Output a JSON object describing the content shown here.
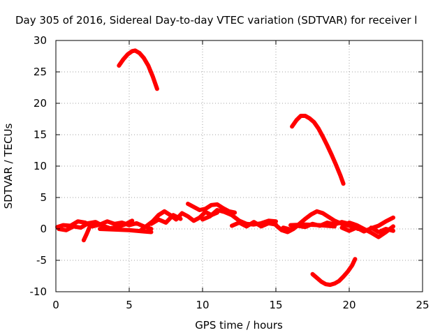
{
  "chart_data": {
    "type": "line",
    "title": "Day 305 of 2016, Sidereal Day-to-day VTEC variation (SDTVAR) for receiver l",
    "xlabel": "GPS time / hours",
    "ylabel": "SDTVAR / TECUs",
    "xlim": [
      0,
      25
    ],
    "ylim": [
      -10,
      30
    ],
    "xticks": [
      0,
      5,
      10,
      15,
      20,
      25
    ],
    "yticks": [
      -10,
      -5,
      0,
      5,
      10,
      15,
      20,
      25,
      30
    ],
    "xtick_labels": [
      "0",
      "5",
      "10",
      "15",
      "20",
      "25"
    ],
    "ytick_labels": [
      "-10",
      "-5",
      "0",
      "5",
      "10",
      "15",
      "20",
      "25",
      "30"
    ],
    "grid": true,
    "legend": "none",
    "series_color": "#ff0000",
    "series": [
      {
        "x": [
          4.3,
          4.6,
          4.9,
          5.2,
          5.4,
          5.7,
          6.0,
          6.3,
          6.6,
          6.9
        ],
        "y": [
          26.0,
          27.0,
          27.8,
          28.3,
          28.4,
          28.0,
          27.2,
          26.0,
          24.3,
          22.3
        ]
      },
      {
        "x": [
          16.1,
          16.4,
          16.7,
          17.0,
          17.3,
          17.6,
          17.9,
          18.2,
          18.5,
          18.8,
          19.1,
          19.4,
          19.6
        ],
        "y": [
          16.3,
          17.3,
          18.0,
          18.0,
          17.6,
          17.0,
          16.0,
          14.7,
          13.3,
          11.8,
          10.2,
          8.5,
          7.2
        ]
      },
      {
        "x": [
          17.5,
          17.8,
          18.1,
          18.4,
          18.7,
          19.0,
          19.3,
          19.6,
          19.9,
          20.2,
          20.4
        ],
        "y": [
          -7.2,
          -7.8,
          -8.4,
          -8.8,
          -8.9,
          -8.7,
          -8.3,
          -7.6,
          -6.8,
          -5.8,
          -4.8
        ]
      },
      {
        "x": [
          0.1,
          0.5,
          1.0,
          1.5,
          2.0,
          2.5,
          3.0,
          3.5,
          4.0,
          4.5,
          5.0,
          5.5,
          6.0,
          6.5
        ],
        "y": [
          0.3,
          0.6,
          0.5,
          1.2,
          1.0,
          0.4,
          0.7,
          1.2,
          0.8,
          1.0,
          0.6,
          0.9,
          0.4,
          0.0
        ]
      },
      {
        "x": [
          0.2,
          0.7,
          1.2,
          1.7,
          2.2,
          2.7,
          3.2,
          3.7,
          4.2,
          4.7,
          5.2
        ],
        "y": [
          0.0,
          -0.2,
          0.4,
          0.2,
          0.9,
          1.1,
          0.5,
          0.1,
          0.3,
          0.7,
          1.3
        ]
      },
      {
        "x": [
          1.9,
          2.1,
          2.3
        ],
        "y": [
          -1.8,
          -0.8,
          0.3
        ]
      },
      {
        "x": [
          3.0,
          4.0,
          5.0,
          6.0,
          6.5
        ],
        "y": [
          0.0,
          -0.1,
          -0.2,
          -0.4,
          -0.5
        ]
      },
      {
        "x": [
          5.8,
          6.2,
          6.6,
          7.0,
          7.4,
          7.8,
          8.2,
          8.6,
          9.0,
          9.4,
          9.8,
          10.2,
          10.6,
          11.0
        ],
        "y": [
          -0.2,
          0.5,
          1.2,
          2.2,
          2.8,
          2.2,
          1.5,
          2.5,
          2.0,
          1.3,
          1.8,
          2.7,
          2.2,
          2.6
        ]
      },
      {
        "x": [
          6.5,
          7.0,
          7.5,
          8.0,
          8.5
        ],
        "y": [
          0.8,
          1.5,
          1.0,
          2.2,
          1.6
        ]
      },
      {
        "x": [
          9.0,
          9.4,
          9.8,
          10.2,
          10.6,
          11.0,
          11.4,
          11.8,
          12.2
        ],
        "y": [
          4.0,
          3.5,
          3.0,
          3.2,
          3.8,
          3.9,
          3.3,
          2.8,
          2.6
        ]
      },
      {
        "x": [
          10.0,
          10.5,
          11.0,
          11.5,
          12.0,
          12.5,
          13.0,
          13.5,
          14.0,
          14.5,
          15.0
        ],
        "y": [
          1.5,
          2.0,
          3.0,
          2.7,
          2.2,
          1.3,
          0.8,
          0.7,
          0.9,
          1.3,
          1.2
        ]
      },
      {
        "x": [
          12.0,
          12.5,
          13.0,
          13.5,
          14.0,
          14.5,
          15.0
        ],
        "y": [
          0.5,
          1.0,
          0.4,
          1.1,
          0.4,
          0.9,
          0.7
        ]
      },
      {
        "x": [
          15.0,
          15.4,
          15.8,
          16.2,
          16.6,
          17.0,
          17.4,
          17.8,
          18.2,
          18.6,
          19.0,
          19.4,
          19.8,
          20.2,
          20.6
        ],
        "y": [
          0.6,
          -0.2,
          -0.5,
          0.0,
          0.8,
          1.6,
          2.3,
          2.8,
          2.5,
          1.9,
          1.3,
          0.9,
          0.6,
          0.4,
          0.0
        ]
      },
      {
        "x": [
          15.5,
          16.0,
          16.5,
          17.0,
          17.5,
          18.0,
          18.5,
          19.0,
          19.5,
          20.0
        ],
        "y": [
          0.2,
          -0.1,
          0.5,
          0.3,
          0.8,
          0.5,
          1.0,
          0.7,
          1.1,
          0.8
        ]
      },
      {
        "x": [
          16.0,
          17.0,
          18.0,
          19.0
        ],
        "y": [
          0.6,
          0.7,
          0.6,
          0.4
        ]
      },
      {
        "x": [
          19.5,
          20.0,
          20.5,
          21.0,
          21.5,
          22.0,
          22.5,
          23.0
        ],
        "y": [
          0.2,
          -0.3,
          0.2,
          -0.4,
          0.1,
          0.5,
          1.2,
          1.8
        ]
      },
      {
        "x": [
          20.0,
          20.5,
          21.0,
          21.5,
          22.0,
          22.5,
          23.0
        ],
        "y": [
          1.0,
          0.6,
          0.0,
          -0.6,
          -1.3,
          -0.5,
          0.4
        ]
      },
      {
        "x": [
          21.5,
          22.0,
          22.5,
          23.0
        ],
        "y": [
          0.2,
          -0.5,
          0.0,
          -0.3
        ]
      }
    ]
  }
}
